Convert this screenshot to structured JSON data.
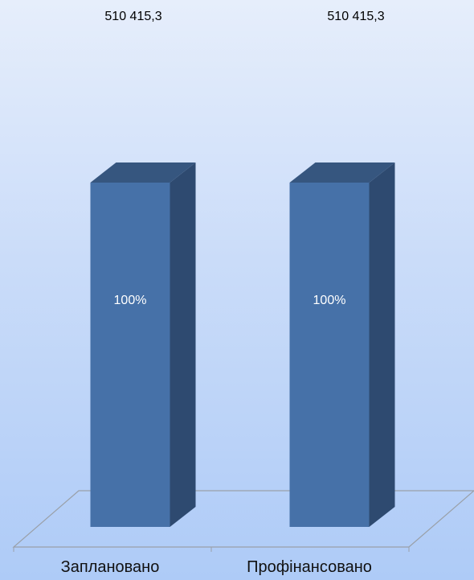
{
  "chart_data": {
    "type": "bar",
    "categories": [
      "Заплановано",
      "Профінансовано"
    ],
    "values": [
      510415.3,
      510415.3
    ],
    "value_labels": [
      "510 415,3",
      "510 415,3"
    ],
    "percent_labels": [
      "100%",
      "100%"
    ],
    "title": "",
    "xlabel": "",
    "ylabel": "",
    "ylim": [
      0,
      510415.3
    ],
    "grid": false,
    "legend": "none",
    "colors": {
      "bar_front": "#4671a8",
      "bar_side": "#2e4a70",
      "bar_top": "#36567f",
      "floor_line": "#9aa0a8",
      "percent_text": "#ffffff"
    }
  }
}
